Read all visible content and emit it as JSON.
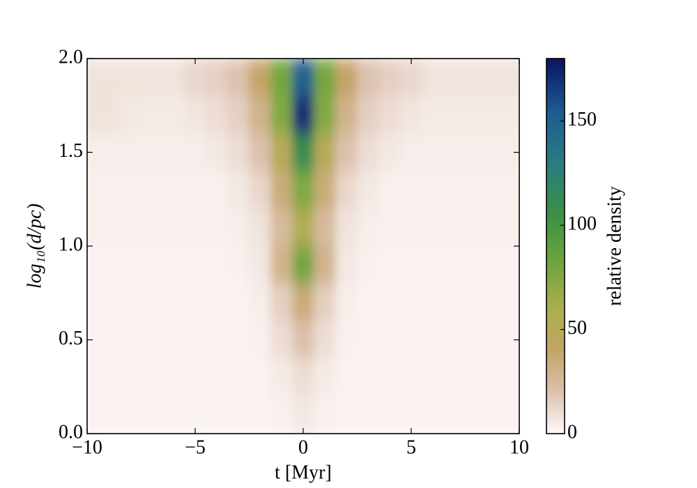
{
  "chart_data": {
    "type": "heatmap",
    "xlabel": "t [Myr]",
    "ylabel": "log₁₀(d/pc)",
    "x": [
      -10,
      -9,
      -8,
      -7,
      -6,
      -5,
      -4,
      -3,
      -2,
      -1,
      0,
      1,
      2,
      3,
      4,
      5,
      6,
      7,
      8,
      9,
      10
    ],
    "y": [
      0.1,
      0.3,
      0.5,
      0.7,
      0.9,
      1.1,
      1.3,
      1.5,
      1.7,
      1.9
    ],
    "z": [
      [
        2,
        2,
        2,
        2,
        2,
        2,
        2,
        2,
        2,
        3,
        6,
        3,
        2,
        2,
        2,
        2,
        2,
        2,
        2,
        2,
        2
      ],
      [
        2,
        2,
        2,
        2,
        2,
        2,
        2,
        2,
        2,
        5,
        10,
        5,
        2,
        2,
        2,
        2,
        2,
        2,
        2,
        2,
        2
      ],
      [
        2,
        2,
        2,
        2,
        2,
        2,
        2,
        2,
        3,
        10,
        20,
        10,
        3,
        2,
        2,
        2,
        2,
        2,
        2,
        2,
        2
      ],
      [
        2,
        2,
        2,
        2,
        2,
        2,
        2,
        2,
        4,
        15,
        35,
        15,
        4,
        2,
        2,
        2,
        2,
        2,
        2,
        2,
        2
      ],
      [
        2,
        2,
        2,
        2,
        2,
        2,
        2,
        3,
        6,
        30,
        80,
        30,
        6,
        3,
        2,
        2,
        2,
        2,
        2,
        2,
        2
      ],
      [
        3,
        3,
        3,
        3,
        3,
        3,
        3,
        4,
        8,
        25,
        55,
        25,
        8,
        4,
        3,
        3,
        3,
        3,
        3,
        3,
        3
      ],
      [
        3,
        3,
        3,
        3,
        3,
        3,
        3,
        6,
        12,
        35,
        75,
        35,
        12,
        6,
        3,
        3,
        3,
        3,
        3,
        3,
        3
      ],
      [
        4,
        4,
        4,
        4,
        4,
        4,
        6,
        10,
        20,
        50,
        110,
        50,
        20,
        10,
        6,
        4,
        4,
        4,
        4,
        4,
        4
      ],
      [
        8,
        8,
        6,
        5,
        5,
        7,
        10,
        15,
        30,
        75,
        170,
        75,
        30,
        15,
        10,
        7,
        5,
        5,
        5,
        5,
        5
      ],
      [
        8,
        8,
        8,
        8,
        8,
        12,
        15,
        20,
        40,
        80,
        150,
        80,
        40,
        20,
        15,
        12,
        8,
        8,
        8,
        8,
        8
      ]
    ],
    "xlim": [
      -10,
      10
    ],
    "xticks": [
      {
        "value": -10,
        "label": "−10"
      },
      {
        "value": -5,
        "label": "−5"
      },
      0,
      5,
      10
    ],
    "ylim": [
      0,
      2
    ],
    "yticks": [
      {
        "value": 0,
        "label": "0.0"
      },
      0.5,
      {
        "value": 1,
        "label": "1.0"
      },
      1.5,
      {
        "value": 2,
        "label": "2.0"
      }
    ],
    "colorbar": {
      "label": "relative density",
      "zlim": [
        0,
        180
      ],
      "zticks": [
        0,
        50,
        100,
        150
      ]
    },
    "colorscale": [
      {
        "value": 0,
        "color": "#fdf9f9"
      },
      {
        "value": 20,
        "color": "#dcc1ae"
      },
      {
        "value": 40,
        "color": "#c4a466"
      },
      {
        "value": 60,
        "color": "#a9b04c"
      },
      {
        "value": 85,
        "color": "#68a23e"
      },
      {
        "value": 105,
        "color": "#3b9045"
      },
      {
        "value": 130,
        "color": "#2a7c82"
      },
      {
        "value": 155,
        "color": "#1d5a92"
      },
      {
        "value": 180,
        "color": "#0a1460"
      }
    ]
  }
}
